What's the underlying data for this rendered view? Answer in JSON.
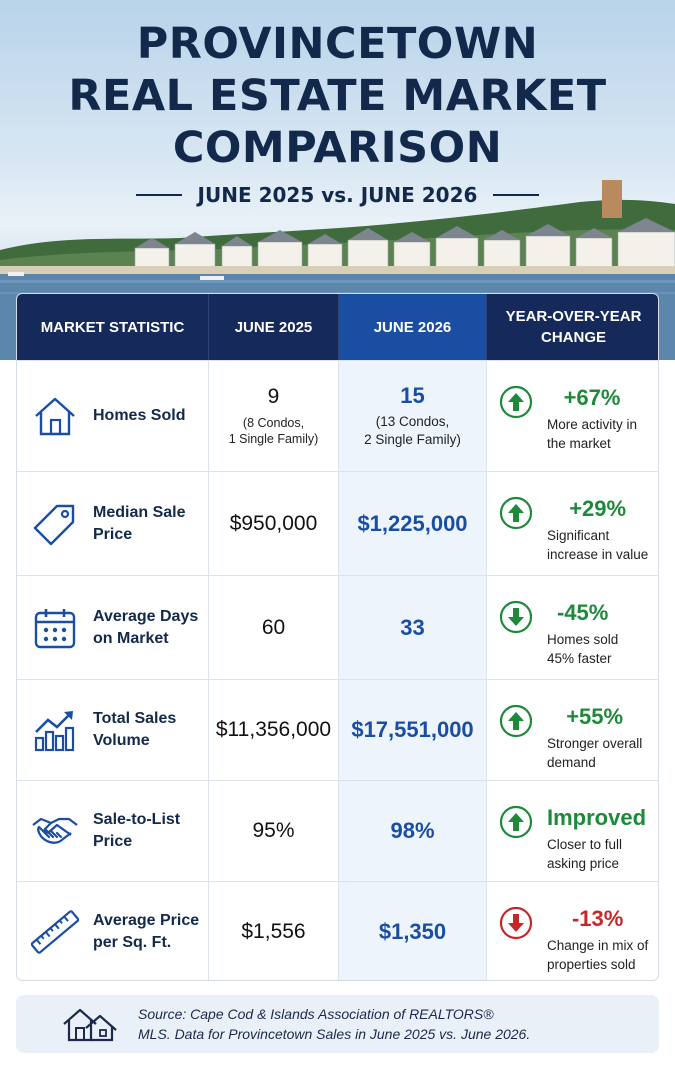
{
  "header": {
    "title_line1": "PROVINCETOWN",
    "title_line2": "REAL ESTATE MARKET",
    "title_line3": "COMPARISON",
    "subtitle": "JUNE 2025 vs. JUNE 2026"
  },
  "table": {
    "headers": {
      "statistic": "MARKET STATISTIC",
      "june2025": "JUNE 2025",
      "june2026": "JUNE 2026",
      "change_line1": "YEAR-OVER-YEAR",
      "change_line2": "CHANGE"
    },
    "rows": [
      {
        "icon": "house-icon",
        "label": "Homes Sold",
        "june2025": "9",
        "june2025_note_line1": "(8 Condos,",
        "june2025_note_line2": "1 Single Family)",
        "june2026": "15",
        "june2026_note_line1": "(13 Condos,",
        "june2026_note_line2": "2 Single Family)",
        "direction": "up",
        "change": "+67%",
        "change_note_line1": "More activity in",
        "change_note_line2": "the market"
      },
      {
        "icon": "price-tag-icon",
        "label_line1": "Median Sale",
        "label_line2": "Price",
        "june2025": "$950,000",
        "june2026": "$1,225,000",
        "direction": "up",
        "change": "+29%",
        "change_note_line1": "Significant",
        "change_note_line2": "increase in value"
      },
      {
        "icon": "calendar-icon",
        "label_line1": "Average Days",
        "label_line2": "on Market",
        "june2025": "60",
        "june2026": "33",
        "direction": "down",
        "change": "-45%",
        "change_note_line1": "Homes sold",
        "change_note_line2": "45% faster"
      },
      {
        "icon": "bar-chart-icon",
        "label_line1": "Total Sales",
        "label_line2": "Volume",
        "june2025": "$11,356,000",
        "june2026": "$17,551,000",
        "direction": "up",
        "change": "+55%",
        "change_note_line1": "Stronger overall",
        "change_note_line2": "demand"
      },
      {
        "icon": "handshake-icon",
        "label_line1": "Sale-to-List",
        "label_line2": "Price",
        "june2025": "95%",
        "june2026": "98%",
        "direction": "up",
        "change": "Improved",
        "change_note_line1": "Closer to full",
        "change_note_line2": "asking price"
      },
      {
        "icon": "ruler-icon",
        "label_line1": "Average Price",
        "label_line2": "per Sq. Ft.",
        "june2025": "$1,556",
        "june2026": "$1,350",
        "direction": "down",
        "change": "-13%",
        "change_note_line1": "Change in mix of",
        "change_note_line2": "properties sold"
      }
    ]
  },
  "source": {
    "icon": "houses-icon",
    "line1": "Source: Cape Cod & Islands Association of REALTORS®",
    "line2": "MLS. Data for Provincetown Sales in June 2025 vs. June 2026."
  },
  "colors": {
    "navy": "#15295a",
    "accent_blue": "#1a4ea3",
    "up_green": "#1d8a3a",
    "down_red": "#c62828",
    "highlight_column": "#eef4fc"
  }
}
